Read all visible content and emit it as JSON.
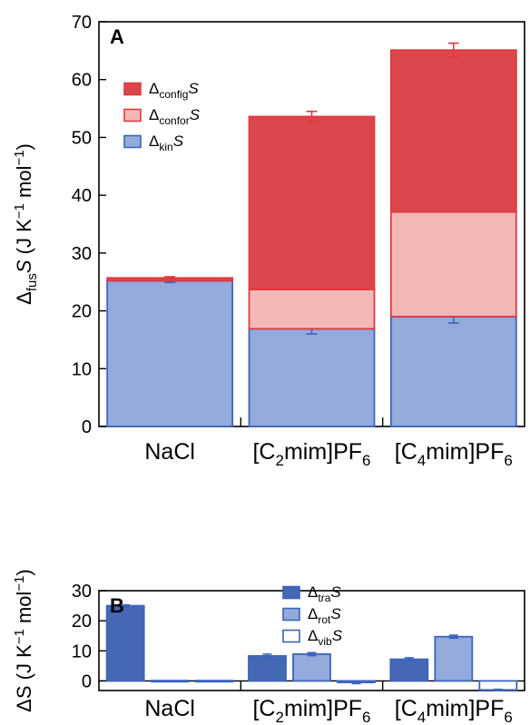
{
  "panels": [
    {
      "letter": "A",
      "chart_data": {
        "type": "bar",
        "stacked": true,
        "categories": [
          "NaCl",
          "[C2mim]PF6",
          "[C4mim]PF6"
        ],
        "ylim": [
          0,
          70
        ],
        "yticks": [
          0,
          10,
          20,
          30,
          40,
          50,
          60,
          70
        ],
        "ylabel": "ΔfusS (J K−1 mol−1)",
        "legend_placement": "top-left",
        "series": [
          {
            "name": "ΔkinS",
            "values": [
              25.2,
              16.9,
              19.0
            ],
            "errors": [
              0.3,
              0.9,
              1.1
            ],
            "fill": "#93aadb",
            "stroke": "#3b65bc"
          },
          {
            "name": "ΔconforS",
            "values": [
              0,
              6.8,
              18.1
            ],
            "errors": [
              0,
              0,
              0
            ],
            "fill": "#f2b8b8",
            "stroke": "#e03a3f"
          },
          {
            "name": "ΔconfigS",
            "values": [
              0.5,
              29.9,
              28.0
            ],
            "errors": [
              0.2,
              0.9,
              1.2
            ],
            "fill": "#db474c",
            "stroke": "#e03a3f"
          }
        ],
        "legend_order": [
          2,
          1,
          0
        ]
      }
    },
    {
      "letter": "B",
      "chart_data": {
        "type": "bar",
        "stacked": false,
        "categories": [
          "NaCl",
          "[C2mim]PF6",
          "[C4mim]PF6"
        ],
        "ylim": [
          -3.2,
          30
        ],
        "yticks": [
          0,
          10,
          20,
          30
        ],
        "ylabel": "ΔS (J K−1 mol−1)",
        "legend_placement": "top-center",
        "series": [
          {
            "name": "ΔtraS",
            "values": [
              25.0,
              8.3,
              7.2
            ],
            "errors": [
              0.3,
              0.6,
              0.5
            ],
            "fill": "#4468b4",
            "stroke": "#3b65bc"
          },
          {
            "name": "ΔrotS",
            "values": [
              0.1,
              8.9,
              14.7
            ],
            "errors": [
              0,
              0.5,
              0.5
            ],
            "fill": "#93aadb",
            "stroke": "#3b65bc"
          },
          {
            "name": "ΔvibS",
            "values": [
              0.1,
              -0.5,
              -3.0
            ],
            "errors": [
              0,
              0.4,
              0.2
            ],
            "fill": "#ffffff",
            "stroke": "#3b65bc"
          }
        ],
        "legend_order": [
          0,
          1,
          2
        ]
      }
    }
  ]
}
